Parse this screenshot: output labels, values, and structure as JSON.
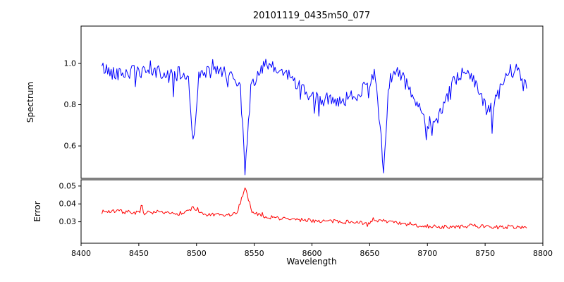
{
  "title": "20101119_0435m50_077",
  "xlabel": "Wavelength",
  "figure_background": "#ffffff",
  "xticks": [
    8400,
    8450,
    8500,
    8550,
    8600,
    8650,
    8700,
    8750,
    8800
  ],
  "xtick_labels": [
    "8400",
    "8450",
    "8500",
    "8550",
    "8600",
    "8650",
    "8700",
    "8750",
    "8800"
  ],
  "chart_data": [
    {
      "type": "line",
      "name": "spectrum",
      "ylabel": "Spectrum",
      "color": "#0000ff",
      "legend": "none",
      "grid": false,
      "xlim": [
        8400,
        8800
      ],
      "ylim": [
        0.443,
        1.181
      ],
      "yticks": [
        0.6,
        0.8,
        1.0
      ],
      "ytick_labels": [
        "0.6",
        "0.8",
        "1.0"
      ],
      "x_range": [
        8418,
        8786
      ],
      "x_step": 1,
      "noise_amplitude": 0.035,
      "noise_seed": 42,
      "spike_down_prob": 0.05,
      "spike_down_max": 0.12,
      "spike_up_prob": 0.03,
      "spike_up_max": 0.05,
      "absorption_features": [
        {
          "wavelength": 8498,
          "depth_flux": 0.62
        },
        {
          "wavelength": 8542,
          "depth_flux": 0.46
        },
        {
          "wavelength": 8662,
          "depth_flux": 0.5
        }
      ],
      "envelope_points": [
        [
          8418,
          0.98
        ],
        [
          8425,
          0.96
        ],
        [
          8435,
          0.95
        ],
        [
          8445,
          0.96
        ],
        [
          8455,
          0.95
        ],
        [
          8465,
          0.96
        ],
        [
          8475,
          0.94
        ],
        [
          8485,
          0.95
        ],
        [
          8493,
          0.93
        ],
        [
          8497,
          0.62
        ],
        [
          8502,
          0.93
        ],
        [
          8510,
          0.96
        ],
        [
          8520,
          0.96
        ],
        [
          8530,
          0.94
        ],
        [
          8538,
          0.9
        ],
        [
          8542,
          0.46
        ],
        [
          8547,
          0.88
        ],
        [
          8553,
          0.95
        ],
        [
          8560,
          0.99
        ],
        [
          8568,
          0.97
        ],
        [
          8578,
          0.95
        ],
        [
          8588,
          0.9
        ],
        [
          8597,
          0.84
        ],
        [
          8607,
          0.82
        ],
        [
          8617,
          0.83
        ],
        [
          8627,
          0.82
        ],
        [
          8637,
          0.84
        ],
        [
          8647,
          0.9
        ],
        [
          8655,
          0.95
        ],
        [
          8662,
          0.5
        ],
        [
          8668,
          0.93
        ],
        [
          8674,
          0.97
        ],
        [
          8682,
          0.9
        ],
        [
          8690,
          0.8
        ],
        [
          8698,
          0.73
        ],
        [
          8706,
          0.71
        ],
        [
          8714,
          0.78
        ],
        [
          8722,
          0.9
        ],
        [
          8730,
          0.95
        ],
        [
          8738,
          0.96
        ],
        [
          8745,
          0.86
        ],
        [
          8752,
          0.76
        ],
        [
          8758,
          0.8
        ],
        [
          8765,
          0.9
        ],
        [
          8772,
          0.96
        ],
        [
          8778,
          0.97
        ],
        [
          8786,
          0.9
        ]
      ]
    },
    {
      "type": "line",
      "name": "error",
      "ylabel": "Error",
      "color": "#ff0000",
      "legend": "none",
      "grid": false,
      "xlim": [
        8400,
        8800
      ],
      "ylim": [
        0.018,
        0.0535
      ],
      "yticks": [
        0.03,
        0.04,
        0.05
      ],
      "ytick_labels": [
        "0.03",
        "0.04",
        "0.05"
      ],
      "x_range": [
        8418,
        8786
      ],
      "x_step": 1,
      "noise_amplitude": 0.0011,
      "noise_seed": 7,
      "spike_down_prob": 0.01,
      "spike_down_max": 0.002,
      "spike_up_prob": 0.04,
      "spike_up_max": 0.004,
      "absorption_features": [
        {
          "wavelength": 8542,
          "peak_error": 0.0495
        }
      ],
      "envelope_points": [
        [
          8418,
          0.0355
        ],
        [
          8430,
          0.036
        ],
        [
          8440,
          0.0355
        ],
        [
          8450,
          0.035
        ],
        [
          8460,
          0.035
        ],
        [
          8470,
          0.0348
        ],
        [
          8480,
          0.0345
        ],
        [
          8490,
          0.035
        ],
        [
          8497,
          0.038
        ],
        [
          8505,
          0.034
        ],
        [
          8515,
          0.0338
        ],
        [
          8525,
          0.0335
        ],
        [
          8535,
          0.0345
        ],
        [
          8542,
          0.0495
        ],
        [
          8548,
          0.036
        ],
        [
          8555,
          0.0335
        ],
        [
          8565,
          0.0325
        ],
        [
          8575,
          0.0318
        ],
        [
          8585,
          0.0312
        ],
        [
          8595,
          0.0308
        ],
        [
          8605,
          0.0305
        ],
        [
          8615,
          0.0303
        ],
        [
          8625,
          0.03
        ],
        [
          8635,
          0.0298
        ],
        [
          8645,
          0.0295
        ],
        [
          8655,
          0.03
        ],
        [
          8662,
          0.031
        ],
        [
          8670,
          0.0295
        ],
        [
          8680,
          0.0285
        ],
        [
          8690,
          0.028
        ],
        [
          8700,
          0.0275
        ],
        [
          8710,
          0.0272
        ],
        [
          8720,
          0.027
        ],
        [
          8730,
          0.0272
        ],
        [
          8740,
          0.0278
        ],
        [
          8750,
          0.0272
        ],
        [
          8760,
          0.027
        ],
        [
          8770,
          0.0272
        ],
        [
          8780,
          0.027
        ],
        [
          8786,
          0.0272
        ]
      ]
    }
  ]
}
